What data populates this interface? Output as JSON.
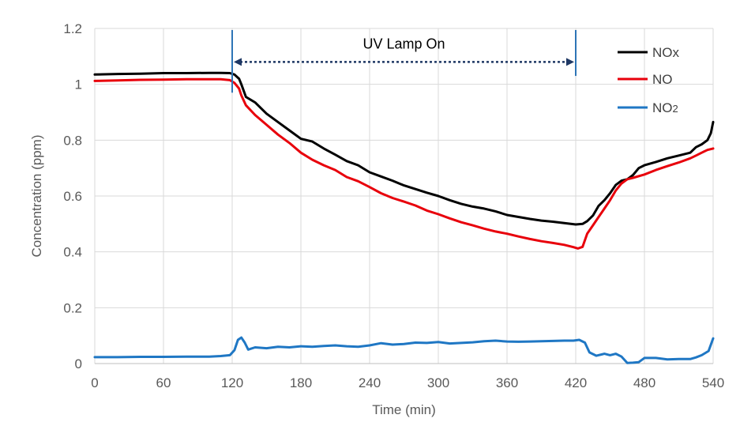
{
  "chart_data": {
    "type": "line",
    "title": "",
    "xlabel": "Time (min)",
    "ylabel": "Concentration (ppm)",
    "xlim": [
      0,
      540
    ],
    "ylim": [
      0,
      1.2
    ],
    "xticks": [
      0,
      60,
      120,
      180,
      240,
      300,
      360,
      420,
      480,
      540
    ],
    "xtick_labels": [
      "0",
      "60",
      "120",
      "180",
      "240",
      "300",
      "360",
      "420",
      "480",
      "540"
    ],
    "yticks": [
      0,
      0.2,
      0.4,
      0.6,
      0.8,
      1.0,
      1.2
    ],
    "ytick_labels": [
      "0",
      "0.2",
      "0.4",
      "0.6",
      "0.8",
      "1",
      "1.2"
    ],
    "grid": true,
    "legend_position": "top-right",
    "annotation": {
      "text": "UV Lamp On",
      "x_start": 120,
      "x_end": 420,
      "y": 1.08,
      "color": "#1f3864"
    },
    "series": [
      {
        "name": "NOx",
        "label_main": "NO",
        "label_sub": "x",
        "sub_style": "normal",
        "color": "#000000",
        "x": [
          0,
          20,
          40,
          60,
          80,
          100,
          110,
          118,
          122,
          126,
          128,
          132,
          140,
          150,
          160,
          170,
          180,
          190,
          200,
          210,
          220,
          230,
          240,
          250,
          260,
          270,
          280,
          290,
          300,
          310,
          320,
          330,
          340,
          350,
          360,
          370,
          380,
          390,
          400,
          410,
          420,
          426,
          430,
          435,
          440,
          445,
          450,
          455,
          460,
          465,
          470,
          475,
          480,
          490,
          500,
          510,
          520,
          525,
          530,
          535,
          538,
          540
        ],
        "values": [
          1.035,
          1.037,
          1.038,
          1.04,
          1.04,
          1.041,
          1.041,
          1.04,
          1.035,
          1.02,
          1.0,
          0.955,
          0.935,
          0.895,
          0.865,
          0.835,
          0.805,
          0.795,
          0.77,
          0.748,
          0.725,
          0.71,
          0.685,
          0.67,
          0.655,
          0.638,
          0.625,
          0.612,
          0.6,
          0.585,
          0.572,
          0.562,
          0.555,
          0.545,
          0.532,
          0.525,
          0.518,
          0.512,
          0.508,
          0.503,
          0.498,
          0.5,
          0.51,
          0.53,
          0.565,
          0.585,
          0.61,
          0.64,
          0.655,
          0.66,
          0.675,
          0.7,
          0.71,
          0.722,
          0.735,
          0.745,
          0.755,
          0.775,
          0.785,
          0.8,
          0.825,
          0.865
        ]
      },
      {
        "name": "NO",
        "label_main": "NO",
        "label_sub": "",
        "sub_style": "normal",
        "color": "#e8000b",
        "x": [
          0,
          20,
          40,
          60,
          80,
          100,
          110,
          118,
          122,
          126,
          128,
          132,
          140,
          150,
          160,
          170,
          180,
          190,
          200,
          210,
          220,
          230,
          240,
          250,
          260,
          270,
          280,
          290,
          300,
          310,
          320,
          330,
          340,
          350,
          360,
          370,
          380,
          390,
          400,
          410,
          418,
          422,
          426,
          430,
          435,
          440,
          445,
          450,
          455,
          460,
          465,
          470,
          480,
          490,
          500,
          510,
          520,
          525,
          530,
          535,
          540
        ],
        "values": [
          1.012,
          1.014,
          1.016,
          1.017,
          1.018,
          1.018,
          1.018,
          1.015,
          1.005,
          0.985,
          0.96,
          0.925,
          0.89,
          0.855,
          0.82,
          0.79,
          0.755,
          0.73,
          0.71,
          0.693,
          0.668,
          0.653,
          0.632,
          0.61,
          0.593,
          0.58,
          0.566,
          0.548,
          0.535,
          0.52,
          0.506,
          0.495,
          0.483,
          0.473,
          0.465,
          0.455,
          0.446,
          0.438,
          0.432,
          0.425,
          0.417,
          0.412,
          0.418,
          0.465,
          0.495,
          0.525,
          0.555,
          0.585,
          0.62,
          0.645,
          0.66,
          0.665,
          0.677,
          0.693,
          0.707,
          0.72,
          0.735,
          0.745,
          0.755,
          0.765,
          0.77
        ]
      },
      {
        "name": "NO2",
        "label_main": "NO",
        "label_sub": "2",
        "sub_style": "small",
        "color": "#1f77c4",
        "x": [
          0,
          20,
          40,
          60,
          80,
          100,
          110,
          118,
          122,
          125,
          128,
          131,
          134,
          140,
          150,
          160,
          170,
          180,
          190,
          200,
          210,
          220,
          230,
          240,
          250,
          260,
          270,
          280,
          290,
          300,
          310,
          320,
          330,
          340,
          350,
          360,
          370,
          380,
          390,
          400,
          410,
          418,
          423,
          428,
          432,
          438,
          445,
          450,
          455,
          460,
          465,
          470,
          475,
          480,
          490,
          500,
          510,
          520,
          525,
          530,
          536,
          540
        ],
        "values": [
          0.023,
          0.023,
          0.024,
          0.024,
          0.025,
          0.025,
          0.027,
          0.03,
          0.048,
          0.085,
          0.093,
          0.075,
          0.05,
          0.058,
          0.055,
          0.06,
          0.058,
          0.062,
          0.06,
          0.063,
          0.065,
          0.062,
          0.06,
          0.065,
          0.073,
          0.068,
          0.07,
          0.075,
          0.074,
          0.077,
          0.072,
          0.074,
          0.076,
          0.08,
          0.082,
          0.079,
          0.078,
          0.079,
          0.08,
          0.081,
          0.082,
          0.082,
          0.085,
          0.075,
          0.04,
          0.028,
          0.035,
          0.03,
          0.035,
          0.025,
          0.002,
          0.003,
          0.005,
          0.02,
          0.02,
          0.015,
          0.016,
          0.016,
          0.022,
          0.03,
          0.045,
          0.09
        ]
      }
    ]
  }
}
